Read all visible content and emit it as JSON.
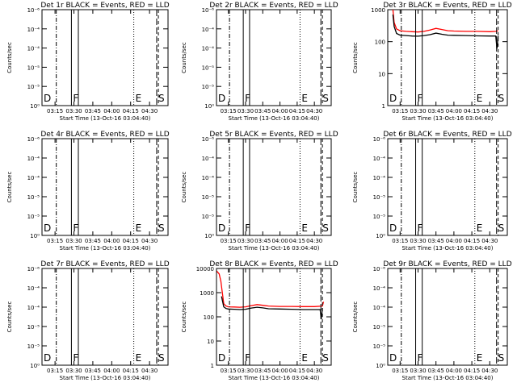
{
  "page": {
    "background": "#ffffff",
    "ink": "#000000",
    "lld_color": "#ff0000"
  },
  "xaxis_label": "Start Time (13-Oct-16 03:04:40)",
  "ylabel": "Counts/sec",
  "chart_data": [
    {
      "type": "line",
      "title": "Det 1r BLACK = Events, RED = LLD",
      "x_ticks": [
        "03:15",
        "03:30",
        "03:45",
        "04:00",
        "04:15",
        "04:30"
      ],
      "x_range": [
        "03:04:40",
        "04:44:40"
      ],
      "ylim": [
        1,
        10000
      ],
      "y_scale": "log",
      "y_ticks": [
        "10⁰",
        "10⁻⁵",
        "10⁻⁵",
        "10⁻⁴",
        "10⁻⁴",
        "10⁻⁶"
      ],
      "series": [],
      "markers": [
        {
          "label": "D",
          "time": "03:04:40",
          "style": "solid"
        },
        {
          "label": "",
          "time": "03:16:00",
          "style": "dashdot"
        },
        {
          "label": "F",
          "time": "03:28:00",
          "style": "solid"
        },
        {
          "label": "",
          "time": "03:33:30",
          "style": "solid"
        },
        {
          "label": "E",
          "time": "04:17:30",
          "style": "dotted"
        },
        {
          "label": "S",
          "time": "04:35:40",
          "style": "longdash"
        },
        {
          "label": "",
          "time": "04:37:00",
          "style": "dashed"
        }
      ]
    },
    {
      "type": "line",
      "title": "Det 2r BLACK = Events, RED = LLD",
      "x_ticks": [
        "03:15",
        "03:30",
        "03:45",
        "04:00",
        "04:15",
        "04:30"
      ],
      "x_range": [
        "03:04:40",
        "04:44:40"
      ],
      "ylim": [
        1,
        10000
      ],
      "y_scale": "log",
      "y_ticks": [
        "10⁰",
        "10⁻⁵",
        "10⁻⁵",
        "10⁻⁴",
        "10⁻⁴",
        "10⁻⁶"
      ],
      "series": [],
      "markers": [
        {
          "label": "D",
          "time": "03:04:40",
          "style": "solid"
        },
        {
          "label": "",
          "time": "03:16:00",
          "style": "dashdot"
        },
        {
          "label": "F",
          "time": "03:28:00",
          "style": "solid"
        },
        {
          "label": "",
          "time": "03:33:30",
          "style": "solid"
        },
        {
          "label": "E",
          "time": "04:17:30",
          "style": "dotted"
        },
        {
          "label": "S",
          "time": "04:35:40",
          "style": "longdash"
        },
        {
          "label": "",
          "time": "04:37:00",
          "style": "dashed"
        }
      ]
    },
    {
      "type": "line",
      "title": "Det 3r BLACK = Events, RED = LLD",
      "x_ticks": [
        "03:15",
        "03:30",
        "03:45",
        "04:00",
        "04:15",
        "04:30"
      ],
      "x_range": [
        "03:04:40",
        "04:44:40"
      ],
      "ylim": [
        1,
        1000
      ],
      "y_scale": "log",
      "y_ticks": [
        "1",
        "10",
        "100",
        "1000"
      ],
      "series": [
        {
          "color": "#ff0000",
          "points": [
            [
              "03:09:00",
              1000
            ],
            [
              "03:10:00",
              400
            ],
            [
              "03:12:00",
              250
            ],
            [
              "03:15:00",
              220
            ],
            [
              "03:20:00",
              210
            ],
            [
              "03:25:00",
              205
            ],
            [
              "03:30:00",
              200
            ],
            [
              "03:35:00",
              210
            ],
            [
              "03:40:00",
              230
            ],
            [
              "03:45:00",
              260
            ],
            [
              "03:50:00",
              240
            ],
            [
              "03:55:00",
              220
            ],
            [
              "04:00:00",
              215
            ],
            [
              "04:10:00",
              210
            ],
            [
              "04:20:00",
              210
            ],
            [
              "04:30:00",
              205
            ],
            [
              "04:35:00",
              210
            ],
            [
              "04:37:00",
              220
            ]
          ]
        },
        {
          "color": "#000000",
          "points": [
            [
              "03:09:00",
              700
            ],
            [
              "03:10:00",
              300
            ],
            [
              "03:12:00",
              180
            ],
            [
              "03:15:00",
              160
            ],
            [
              "03:20:00",
              155
            ],
            [
              "03:25:00",
              150
            ],
            [
              "03:30:00",
              148
            ],
            [
              "03:35:00",
              155
            ],
            [
              "03:40:00",
              165
            ],
            [
              "03:45:00",
              185
            ],
            [
              "03:50:00",
              170
            ],
            [
              "03:55:00",
              160
            ],
            [
              "04:00:00",
              158
            ],
            [
              "04:10:00",
              155
            ],
            [
              "04:20:00",
              152
            ],
            [
              "04:30:00",
              150
            ],
            [
              "04:35:00",
              150
            ],
            [
              "04:36:00",
              60
            ],
            [
              "04:37:00",
              150
            ]
          ]
        }
      ],
      "markers": [
        {
          "label": "D",
          "time": "03:04:40",
          "style": "solid"
        },
        {
          "label": "",
          "time": "03:16:00",
          "style": "dashdot"
        },
        {
          "label": "F",
          "time": "03:28:00",
          "style": "solid"
        },
        {
          "label": "",
          "time": "03:33:30",
          "style": "solid"
        },
        {
          "label": "E",
          "time": "04:17:30",
          "style": "dotted"
        },
        {
          "label": "S",
          "time": "04:35:40",
          "style": "longdash"
        },
        {
          "label": "",
          "time": "04:37:00",
          "style": "dashed"
        }
      ]
    },
    {
      "type": "line",
      "title": "Det 4r BLACK = Events, RED = LLD",
      "x_ticks": [
        "03:15",
        "03:30",
        "03:45",
        "04:00",
        "04:15",
        "04:30"
      ],
      "x_range": [
        "03:04:40",
        "04:44:40"
      ],
      "ylim": [
        1,
        10000
      ],
      "y_scale": "log",
      "y_ticks": [
        "10⁰",
        "10⁻⁵",
        "10⁻⁵",
        "10⁻⁴",
        "10⁻⁴",
        "10⁻⁶"
      ],
      "series": [],
      "markers": [
        {
          "label": "D",
          "time": "03:04:40",
          "style": "solid"
        },
        {
          "label": "",
          "time": "03:16:00",
          "style": "dashdot"
        },
        {
          "label": "F",
          "time": "03:28:00",
          "style": "solid"
        },
        {
          "label": "",
          "time": "03:33:30",
          "style": "solid"
        },
        {
          "label": "E",
          "time": "04:17:30",
          "style": "dotted"
        },
        {
          "label": "S",
          "time": "04:35:40",
          "style": "longdash"
        },
        {
          "label": "",
          "time": "04:37:00",
          "style": "dashed"
        }
      ]
    },
    {
      "type": "line",
      "title": "Det 5r BLACK = Events, RED = LLD",
      "x_ticks": [
        "03:15",
        "03:30",
        "03:45",
        "04:00",
        "04:15",
        "04:30"
      ],
      "x_range": [
        "03:04:40",
        "04:44:40"
      ],
      "ylim": [
        1,
        10000
      ],
      "y_scale": "log",
      "y_ticks": [
        "10⁰",
        "10⁻⁵",
        "10⁻⁵",
        "10⁻⁴",
        "10⁻⁴",
        "10⁻⁶"
      ],
      "series": [],
      "markers": [
        {
          "label": "D",
          "time": "03:04:40",
          "style": "solid"
        },
        {
          "label": "",
          "time": "03:16:00",
          "style": "dashdot"
        },
        {
          "label": "F",
          "time": "03:28:00",
          "style": "solid"
        },
        {
          "label": "",
          "time": "03:33:30",
          "style": "solid"
        },
        {
          "label": "E",
          "time": "04:17:30",
          "style": "dotted"
        },
        {
          "label": "S",
          "time": "04:35:40",
          "style": "longdash"
        },
        {
          "label": "",
          "time": "04:37:00",
          "style": "dashed"
        }
      ]
    },
    {
      "type": "line",
      "title": "Det 6r BLACK = Events, RED = LLD",
      "x_ticks": [
        "03:15",
        "03:30",
        "03:45",
        "04:00",
        "04:15",
        "04:30"
      ],
      "x_range": [
        "03:04:40",
        "04:44:40"
      ],
      "ylim": [
        1,
        10000
      ],
      "y_scale": "log",
      "y_ticks": [
        "10⁰",
        "10⁻⁵",
        "10⁻⁵",
        "10⁻⁴",
        "10⁻⁴",
        "10⁻⁶"
      ],
      "series": [],
      "markers": [
        {
          "label": "D",
          "time": "03:04:40",
          "style": "solid"
        },
        {
          "label": "",
          "time": "03:16:00",
          "style": "dashdot"
        },
        {
          "label": "F",
          "time": "03:28:00",
          "style": "solid"
        },
        {
          "label": "",
          "time": "03:33:30",
          "style": "solid"
        },
        {
          "label": "E",
          "time": "04:17:30",
          "style": "dotted"
        },
        {
          "label": "S",
          "time": "04:35:40",
          "style": "longdash"
        },
        {
          "label": "",
          "time": "04:37:00",
          "style": "dashed"
        }
      ]
    },
    {
      "type": "line",
      "title": "Det 7r BLACK = Events, RED = LLD",
      "x_ticks": [
        "03:15",
        "03:30",
        "03:45",
        "04:00",
        "04:15",
        "04:30"
      ],
      "x_range": [
        "03:04:40",
        "04:44:40"
      ],
      "ylim": [
        1,
        10000
      ],
      "y_scale": "log",
      "y_ticks": [
        "10⁰",
        "10⁻⁵",
        "10⁻⁵",
        "10⁻⁴",
        "10⁻⁴",
        "10⁻⁶"
      ],
      "series": [],
      "markers": [
        {
          "label": "D",
          "time": "03:04:40",
          "style": "solid"
        },
        {
          "label": "",
          "time": "03:16:00",
          "style": "dashdot"
        },
        {
          "label": "F",
          "time": "03:28:00",
          "style": "solid"
        },
        {
          "label": "",
          "time": "03:33:30",
          "style": "solid"
        },
        {
          "label": "E",
          "time": "04:17:30",
          "style": "dotted"
        },
        {
          "label": "S",
          "time": "04:35:40",
          "style": "longdash"
        },
        {
          "label": "",
          "time": "04:37:00",
          "style": "dashed"
        }
      ]
    },
    {
      "type": "line",
      "title": "Det 8r BLACK = Events, RED = LLD",
      "x_ticks": [
        "03:15",
        "03:30",
        "03:45",
        "04:00",
        "04:15",
        "04:30"
      ],
      "x_range": [
        "03:04:40",
        "04:44:40"
      ],
      "ylim": [
        1,
        10000
      ],
      "y_scale": "log",
      "y_ticks": [
        "1",
        "10",
        "100",
        "1000",
        "10000"
      ],
      "series": [
        {
          "color": "#ff0000",
          "points": [
            [
              "03:04:40",
              8000
            ],
            [
              "03:07:00",
              6000
            ],
            [
              "03:08:30",
              3000
            ],
            [
              "03:09:30",
              1200
            ],
            [
              "03:11:00",
              350
            ],
            [
              "03:13:00",
              280
            ],
            [
              "03:15:00",
              260
            ],
            [
              "03:20:00",
              255
            ],
            [
              "03:25:00",
              250
            ],
            [
              "03:30:00",
              260
            ],
            [
              "03:35:00",
              290
            ],
            [
              "03:40:00",
              320
            ],
            [
              "03:45:00",
              300
            ],
            [
              "03:50:00",
              280
            ],
            [
              "04:00:00",
              270
            ],
            [
              "04:10:00",
              270
            ],
            [
              "04:20:00",
              265
            ],
            [
              "04:30:00",
              265
            ],
            [
              "04:37:00",
              280
            ],
            [
              "04:38:00",
              420
            ]
          ]
        },
        {
          "color": "#000000",
          "points": [
            [
              "03:09:00",
              700
            ],
            [
              "03:11:00",
              260
            ],
            [
              "03:13:00",
              220
            ],
            [
              "03:15:00",
              210
            ],
            [
              "03:20:00",
              205
            ],
            [
              "03:25:00",
              200
            ],
            [
              "03:30:00",
              205
            ],
            [
              "03:35:00",
              230
            ],
            [
              "03:40:00",
              250
            ],
            [
              "03:45:00",
              235
            ],
            [
              "03:50:00",
              215
            ],
            [
              "04:00:00",
              210
            ],
            [
              "04:10:00",
              205
            ],
            [
              "04:20:00",
              200
            ],
            [
              "04:30:00",
              200
            ],
            [
              "04:35:00",
              200
            ],
            [
              "04:36:00",
              80
            ],
            [
              "04:37:00",
              230
            ]
          ]
        }
      ],
      "markers": [
        {
          "label": "D",
          "time": "03:04:40",
          "style": "solid"
        },
        {
          "label": "",
          "time": "03:16:00",
          "style": "dashdot"
        },
        {
          "label": "F",
          "time": "03:28:00",
          "style": "solid"
        },
        {
          "label": "",
          "time": "03:33:30",
          "style": "solid"
        },
        {
          "label": "E",
          "time": "04:17:30",
          "style": "dotted"
        },
        {
          "label": "S",
          "time": "04:35:40",
          "style": "longdash"
        },
        {
          "label": "",
          "time": "04:37:00",
          "style": "dashed"
        }
      ]
    },
    {
      "type": "line",
      "title": "Det 9r BLACK = Events, RED = LLD",
      "x_ticks": [
        "03:15",
        "03:30",
        "03:45",
        "04:00",
        "04:15",
        "04:30"
      ],
      "x_range": [
        "03:04:40",
        "04:44:40"
      ],
      "ylim": [
        1,
        10000
      ],
      "y_scale": "log",
      "y_ticks": [
        "10⁰",
        "10⁻⁵",
        "10⁻⁵",
        "10⁻⁴",
        "10⁻⁴",
        "10⁻⁶"
      ],
      "series": [],
      "markers": [
        {
          "label": "D",
          "time": "03:04:40",
          "style": "solid"
        },
        {
          "label": "",
          "time": "03:16:00",
          "style": "dashdot"
        },
        {
          "label": "F",
          "time": "03:28:00",
          "style": "solid"
        },
        {
          "label": "",
          "time": "03:33:30",
          "style": "solid"
        },
        {
          "label": "E",
          "time": "04:17:30",
          "style": "dotted"
        },
        {
          "label": "S",
          "time": "04:35:40",
          "style": "longdash"
        },
        {
          "label": "",
          "time": "04:37:00",
          "style": "dashed"
        }
      ]
    }
  ]
}
